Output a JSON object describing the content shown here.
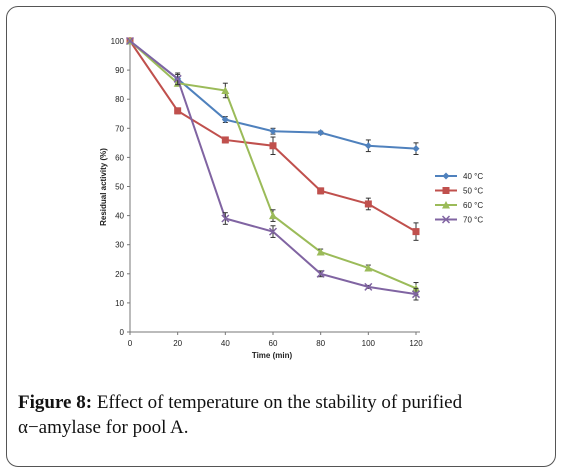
{
  "caption": {
    "label": "Figure 8:",
    "text": "Effect of temperature on the stability of purified α−amylase for pool A."
  },
  "chart_data": {
    "type": "line",
    "xlabel": "Time (min)",
    "ylabel": "Residual activity (%)",
    "x": [
      0,
      20,
      40,
      60,
      80,
      100,
      120
    ],
    "xticks": [
      "0",
      "20",
      "40",
      "60",
      "80",
      "100",
      "120"
    ],
    "yticks": [
      "0",
      "10",
      "20",
      "30",
      "40",
      "50",
      "60",
      "70",
      "80",
      "90",
      "100"
    ],
    "xlim": [
      0,
      120
    ],
    "ylim": [
      0,
      100
    ],
    "grid": false,
    "legend_position": "right",
    "series": [
      {
        "name": "40 °C",
        "color": "#4f81bd",
        "marker": "diamond",
        "values": [
          100,
          87,
          73,
          69,
          68.5,
          64,
          63
        ],
        "errors": [
          0,
          1.5,
          1,
          1,
          0.5,
          2,
          2
        ]
      },
      {
        "name": "50 °C",
        "color": "#c0504d",
        "marker": "square",
        "values": [
          100,
          76,
          66,
          64,
          48.5,
          44,
          34.5
        ],
        "errors": [
          0,
          1,
          1,
          3,
          1,
          2,
          3
        ]
      },
      {
        "name": "60 °C",
        "color": "#9bbb59",
        "marker": "triangle",
        "values": [
          100,
          85.5,
          83,
          40,
          27.5,
          22,
          15
        ],
        "errors": [
          0,
          1,
          2.5,
          2,
          1,
          1,
          2
        ]
      },
      {
        "name": "70 °C",
        "color": "#8064a2",
        "marker": "cross",
        "values": [
          100,
          87,
          39,
          34.5,
          20,
          15.5,
          13
        ],
        "errors": [
          0,
          2,
          2,
          2,
          1,
          0.5,
          2
        ]
      }
    ]
  }
}
